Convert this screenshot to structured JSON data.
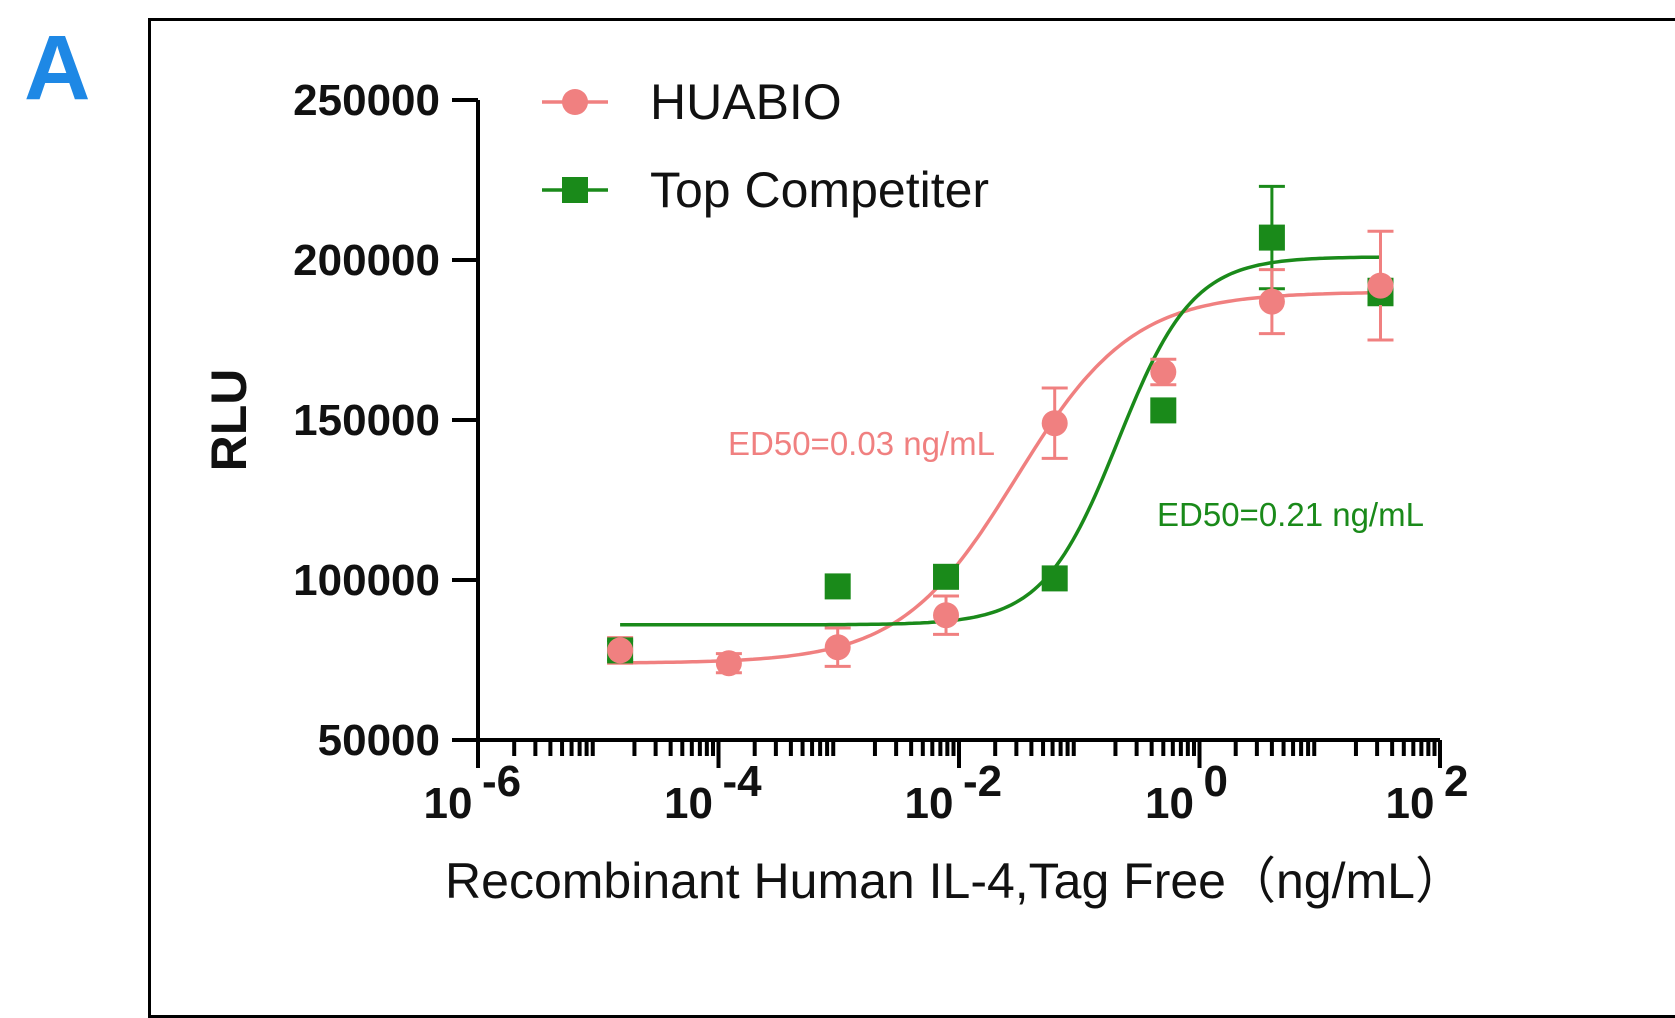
{
  "panel_label": "A",
  "chart_data": {
    "type": "scatter",
    "title": "",
    "xlabel": "Recombinant Human IL-4,Tag Free（ng/mL）",
    "ylabel": "RLU",
    "x_scale": "log",
    "xlim": [
      1e-06,
      100
    ],
    "ylim": [
      50000,
      250000
    ],
    "x_ticks": [
      {
        "value": 1e-06,
        "base": "10",
        "exp": "-6"
      },
      {
        "value": 0.0001,
        "base": "10",
        "exp": "-4"
      },
      {
        "value": 0.01,
        "base": "10",
        "exp": "-2"
      },
      {
        "value": 1,
        "base": "10",
        "exp": "0"
      },
      {
        "value": 100,
        "base": "10",
        "exp": "2"
      }
    ],
    "y_ticks": [
      {
        "value": 50000,
        "label": "50000"
      },
      {
        "value": 100000,
        "label": "100000"
      },
      {
        "value": 150000,
        "label": "150000"
      },
      {
        "value": 200000,
        "label": "200000"
      },
      {
        "value": 250000,
        "label": "250000"
      }
    ],
    "legend": "top-left",
    "grid": false,
    "series": [
      {
        "name": "HUABIO",
        "color": "#f08080",
        "marker": "circle",
        "ed50_label": "ED50=0.03 ng/mL",
        "fit": {
          "bottom": 74000,
          "top": 190000,
          "ec50": 0.03,
          "hill": 0.9
        },
        "points": [
          {
            "x": 1.52e-05,
            "y": 78000,
            "err": 4000
          },
          {
            "x": 0.000122,
            "y": 74000,
            "err": 3000
          },
          {
            "x": 0.00098,
            "y": 79000,
            "err": 6000
          },
          {
            "x": 0.0078,
            "y": 89000,
            "err": 6000
          },
          {
            "x": 0.0625,
            "y": 149000,
            "err": 11000
          },
          {
            "x": 0.5,
            "y": 165000,
            "err": 4000
          },
          {
            "x": 4,
            "y": 187000,
            "err": 10000
          },
          {
            "x": 32,
            "y": 192000,
            "err": 17000
          }
        ]
      },
      {
        "name": "Top Competiter",
        "color": "#1a8a1a",
        "marker": "square",
        "ed50_label": "ED50=0.21 ng/mL",
        "fit": {
          "bottom": 86000,
          "top": 201000,
          "ec50": 0.21,
          "hill": 1.4
        },
        "points": [
          {
            "x": 1.52e-05,
            "y": 78000,
            "err": 3000
          },
          {
            "x": 0.00098,
            "y": 98000,
            "err": 0
          },
          {
            "x": 0.0078,
            "y": 101000,
            "err": 0
          },
          {
            "x": 0.0625,
            "y": 100500,
            "err": 0
          },
          {
            "x": 0.5,
            "y": 153000,
            "err": 0
          },
          {
            "x": 4,
            "y": 207000,
            "err": 16000
          },
          {
            "x": 32,
            "y": 190000,
            "err": 4000
          }
        ]
      }
    ]
  }
}
